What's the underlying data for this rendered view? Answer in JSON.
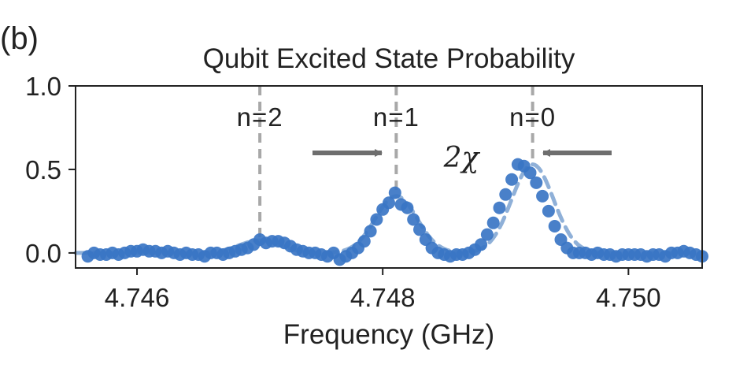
{
  "panel_label": "(b)",
  "chart_data": {
    "type": "scatter",
    "title": "Qubit Excited State Probability",
    "xlabel": "Frequency (GHz)",
    "ylabel": "",
    "xlim": [
      4.7455,
      4.7506
    ],
    "ylim": [
      -0.09,
      1.0
    ],
    "x_ticks": [
      4.746,
      4.748,
      4.75
    ],
    "x_tick_labels": [
      "4.746",
      "4.748",
      "4.750"
    ],
    "y_ticks": [
      0.0,
      0.5,
      1.0
    ],
    "y_tick_labels": [
      "0.0",
      "0.5",
      "1.0"
    ],
    "grid": false,
    "legend": "none",
    "point_color": "#3a75c4",
    "fit_color": "#8fb0d8",
    "marker_line_color": "#a8a8a8",
    "arrow_color": "#6e6e6e",
    "series": [
      {
        "x": [
          4.7456,
          4.74565,
          4.7457,
          4.74575,
          4.7458,
          4.74585,
          4.7459,
          4.74595,
          4.746,
          4.74605,
          4.7461,
          4.74615,
          4.7462,
          4.74625,
          4.7463,
          4.74635,
          4.7464,
          4.74645,
          4.7465,
          4.74655,
          4.7466,
          4.74665,
          4.7467,
          4.74675,
          4.7468,
          4.74685,
          4.7469,
          4.74695,
          4.747,
          4.74705,
          4.7471,
          4.74715,
          4.7472,
          4.74725,
          4.7473,
          4.74735,
          4.7474,
          4.74745,
          4.7475,
          4.74755,
          4.7476,
          4.74765,
          4.7477,
          4.74775,
          4.7478,
          4.74785,
          4.7479,
          4.74795,
          4.748,
          4.74805,
          4.7481,
          4.74815,
          4.7482,
          4.74825,
          4.7483,
          4.74835,
          4.7484,
          4.74845,
          4.7485,
          4.74855,
          4.7486,
          4.74865,
          4.7487,
          4.74875,
          4.7488,
          4.74885,
          4.7489,
          4.74895,
          4.749,
          4.74905,
          4.7491,
          4.74915,
          4.7492,
          4.74925,
          4.7493,
          4.74935,
          4.7494,
          4.74945,
          4.7495,
          4.74955,
          4.7496,
          4.74965,
          4.7497,
          4.74975,
          4.7498,
          4.74985,
          4.7499,
          4.74995,
          4.75,
          4.75005,
          4.7501,
          4.75015,
          4.7502,
          4.75025,
          4.7503,
          4.75035,
          4.7504,
          4.75045,
          4.7505,
          4.75055,
          4.7506
        ],
        "y": [
          -0.02,
          0.0,
          -0.01,
          -0.01,
          0.0,
          -0.01,
          0.0,
          0.01,
          0.01,
          0.02,
          0.01,
          0.01,
          0.0,
          0.01,
          0.0,
          -0.01,
          0.0,
          -0.01,
          -0.01,
          -0.02,
          0.0,
          0.0,
          -0.01,
          0.0,
          0.01,
          0.02,
          0.03,
          0.05,
          0.08,
          0.06,
          0.07,
          0.07,
          0.06,
          0.04,
          0.02,
          0.01,
          0.0,
          0.0,
          -0.01,
          -0.02,
          0.0,
          -0.04,
          -0.02,
          0.0,
          0.03,
          0.07,
          0.13,
          0.2,
          0.26,
          0.3,
          0.36,
          0.29,
          0.27,
          0.2,
          0.14,
          0.08,
          0.03,
          0.0,
          -0.01,
          -0.02,
          -0.01,
          -0.01,
          0.0,
          0.02,
          0.05,
          0.11,
          0.18,
          0.27,
          0.35,
          0.44,
          0.53,
          0.52,
          0.48,
          0.42,
          0.34,
          0.25,
          0.16,
          0.08,
          0.03,
          0.0,
          0.0,
          0.0,
          -0.01,
          0.0,
          -0.01,
          -0.01,
          -0.02,
          -0.01,
          -0.01,
          -0.01,
          -0.01,
          -0.02,
          -0.01,
          -0.01,
          -0.02,
          0.0,
          0.0,
          0.01,
          0.0,
          -0.01,
          -0.02
        ]
      }
    ],
    "fit": {
      "amplitudes": [
        0.075,
        0.34,
        0.53
      ],
      "centers": [
        4.747,
        4.74811,
        4.74922
      ],
      "sigma": 0.00017
    },
    "annotations": [
      {
        "text": "n=2",
        "x": 4.747
      },
      {
        "text": "n=1",
        "x": 4.74811
      },
      {
        "text": "n=0",
        "x": 4.74922
      }
    ],
    "chi_label": "2χ"
  }
}
